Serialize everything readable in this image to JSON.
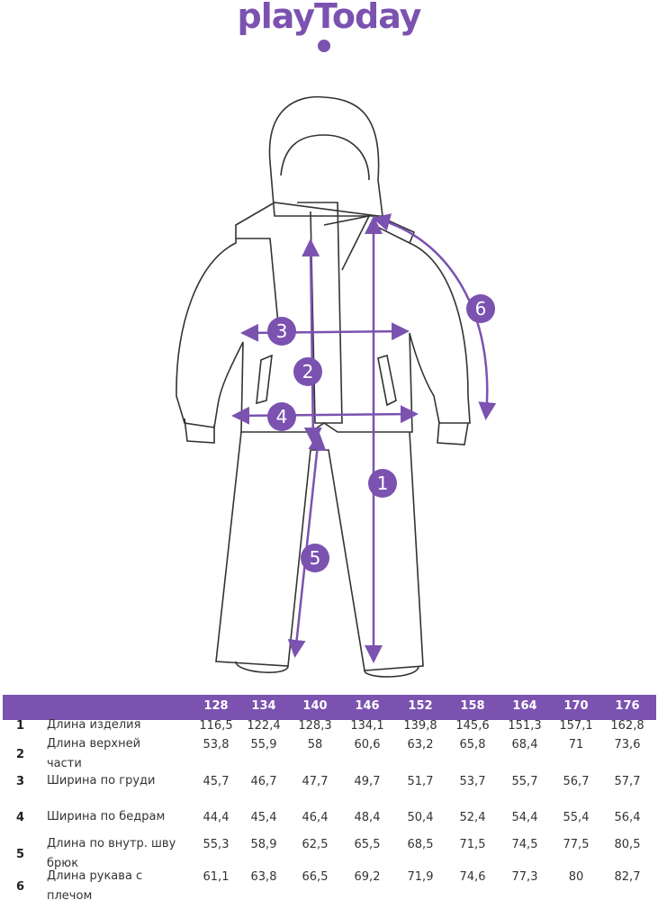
{
  "brand": {
    "logo_text": "playToday",
    "color": "#7b52b0"
  },
  "markers": [
    "1",
    "2",
    "3",
    "4",
    "5",
    "6"
  ],
  "size_table": {
    "sizes": [
      "128",
      "134",
      "140",
      "146",
      "152",
      "158",
      "164",
      "170",
      "176"
    ],
    "rows": [
      {
        "num": "1",
        "label": "Длина изделия",
        "values": [
          "116,5",
          "122,4",
          "128,3",
          "134,1",
          "139,8",
          "145,6",
          "151,3",
          "157,1",
          "162,8"
        ]
      },
      {
        "num": "2",
        "label": "Длина верхней части",
        "values": [
          "53,8",
          "55,9",
          "58",
          "60,6",
          "63,2",
          "65,8",
          "68,4",
          "71",
          "73,6"
        ]
      },
      {
        "num": "3",
        "label": "Ширина по груди",
        "values": [
          "45,7",
          "46,7",
          "47,7",
          "49,7",
          "51,7",
          "53,7",
          "55,7",
          "56,7",
          "57,7"
        ]
      },
      {
        "num": "4",
        "label": "Ширина по бедрам",
        "values": [
          "44,4",
          "45,4",
          "46,4",
          "48,4",
          "50,4",
          "52,4",
          "54,4",
          "55,4",
          "56,4"
        ]
      },
      {
        "num": "5",
        "label": "Длина по внутр. шву брюк",
        "values": [
          "55,3",
          "58,9",
          "62,5",
          "65,5",
          "68,5",
          "71,5",
          "74,5",
          "77,5",
          "80,5"
        ]
      },
      {
        "num": "6",
        "label": "Длина рукава с плечом",
        "values": [
          "61,1",
          "63,8",
          "66,5",
          "69,2",
          "71,9",
          "74,6",
          "77,3",
          "80",
          "82,7"
        ]
      }
    ]
  }
}
